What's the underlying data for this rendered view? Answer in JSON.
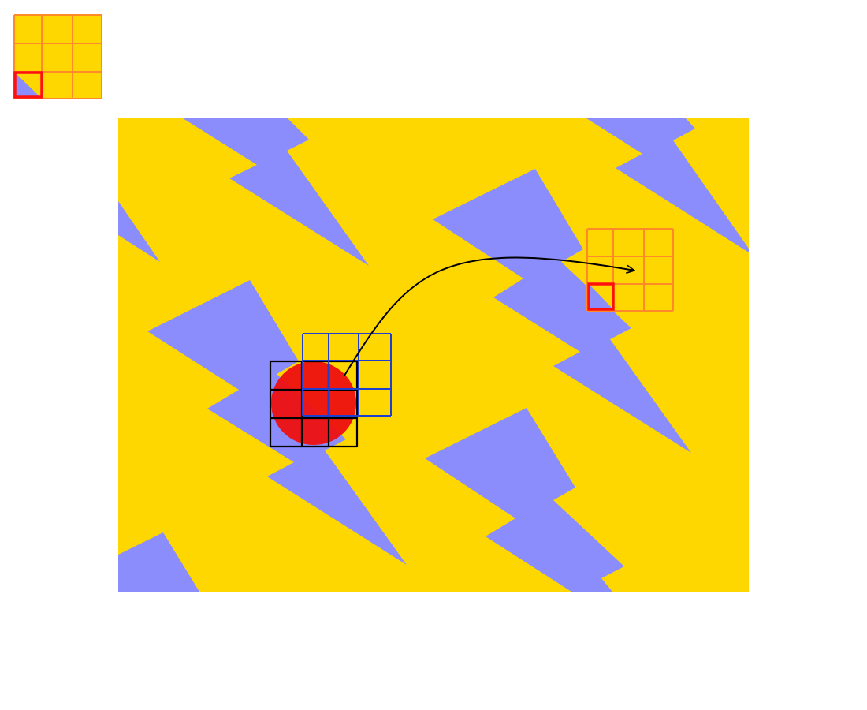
{
  "colors": {
    "background": "#FFFFFF",
    "canvas_fill": "#FFD700",
    "bolt_fill": "#8A8DFB",
    "patch_grid_line": "#FF8A2A",
    "patch_selected_cell": "#FF1010",
    "kernel_black_grid": "#000000",
    "kernel_blue_grid": "#1F3FD0",
    "blob_fill": "#EE1010",
    "arrow": "#000000"
  },
  "thumbnail_patch": {
    "rows": 3,
    "cols": 3,
    "selected_cell": {
      "row": 2,
      "col": 0
    }
  },
  "mapped_patch": {
    "rows": 3,
    "cols": 3,
    "selected_cell": {
      "row": 2,
      "col": 0
    }
  },
  "kernel_black": {
    "rows": 3,
    "cols": 3
  },
  "kernel_blue": {
    "rows": 3,
    "cols": 3
  }
}
